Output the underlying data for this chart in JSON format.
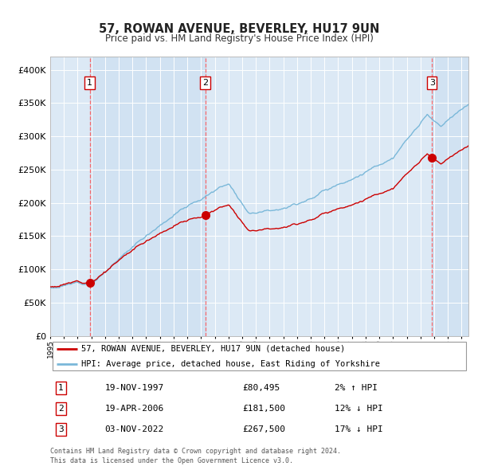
{
  "title": "57, ROWAN AVENUE, BEVERLEY, HU17 9UN",
  "subtitle": "Price paid vs. HM Land Registry's House Price Index (HPI)",
  "hpi_label": "HPI: Average price, detached house, East Riding of Yorkshire",
  "property_label": "57, ROWAN AVENUE, BEVERLEY, HU17 9UN (detached house)",
  "sale_dates_float": [
    1997.88,
    2006.3,
    2022.84
  ],
  "sale_prices": [
    80495,
    181500,
    267500
  ],
  "sale_labels": [
    "1",
    "2",
    "3"
  ],
  "sale_annotations": [
    "19-NOV-1997",
    "19-APR-2006",
    "03-NOV-2022"
  ],
  "sale_prices_str": [
    "£80,495",
    "£181,500",
    "£267,500"
  ],
  "sale_hpi_str": [
    "2% ↑ HPI",
    "12% ↓ HPI",
    "17% ↓ HPI"
  ],
  "ylim": [
    0,
    420000
  ],
  "yticks": [
    0,
    50000,
    100000,
    150000,
    200000,
    250000,
    300000,
    350000,
    400000
  ],
  "ytick_labels": [
    "£0",
    "£50K",
    "£100K",
    "£150K",
    "£200K",
    "£250K",
    "£300K",
    "£350K",
    "£400K"
  ],
  "xmin": 1995.0,
  "xmax": 2025.5,
  "background_color": "#ffffff",
  "plot_bg_color": "#dce9f5",
  "grid_color": "#ffffff",
  "hpi_line_color": "#7ab8d9",
  "property_line_color": "#cc0000",
  "sale_marker_color": "#cc0000",
  "vline_color": "#ff5555",
  "footnote": "Contains HM Land Registry data © Crown copyright and database right 2024.\nThis data is licensed under the Open Government Licence v3.0."
}
